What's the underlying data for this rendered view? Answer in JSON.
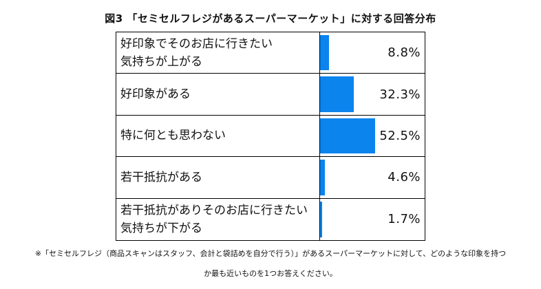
{
  "chart_data": {
    "type": "bar",
    "orientation": "horizontal",
    "title": "図3 「セミセルフレジがあるスーパーマーケット」に対する回答分布",
    "unit": "%",
    "categories": [
      "好印象でそのお店に行きたい\n気持ちが上がる",
      "好印象がある",
      "特に何とも思わない",
      "若干抵抗がある",
      "若干抵抗がありそのお店に行きたい\n気持ちが下がる"
    ],
    "values": [
      8.8,
      32.3,
      52.5,
      4.6,
      1.7
    ],
    "value_labels": [
      "8.8%",
      "32.3%",
      "52.5%",
      "4.6%",
      "1.7%"
    ],
    "xlim": [
      0,
      100
    ],
    "grid": false,
    "legend": "none",
    "bar_color": "#0b84ee"
  },
  "footnote": {
    "line1": "※「セミセルフレジ（商品スキャンはスタッフ、会計と袋詰めを自分で行う）」があるスーパーマーケットに対して、どのような印象を持つ",
    "line2": "か最も近いものを1つお答えください。"
  }
}
